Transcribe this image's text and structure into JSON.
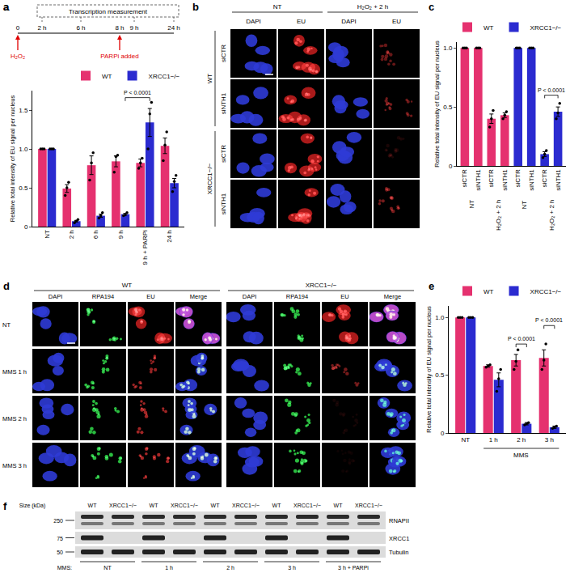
{
  "chart_data": [
    {
      "panel": "a",
      "type": "bar",
      "y_label": "Relative total intensity of EU signal per nucleus",
      "categories": [
        "NT",
        "2 h",
        "6 h",
        "9 h",
        "9 h + PARPi",
        "24 h"
      ],
      "series": [
        {
          "name": "WT",
          "color": "#e5316f",
          "values": [
            1,
            0.49,
            0.79,
            0.84,
            0.82,
            1.04
          ],
          "errors": [
            0,
            0.05,
            0.12,
            0.07,
            0.05,
            0.1
          ],
          "points": [
            [
              1,
              1,
              1
            ],
            [
              0.4,
              0.5,
              0.57
            ],
            [
              0.6,
              0.82,
              0.95
            ],
            [
              0.7,
              0.9,
              0.92
            ],
            [
              0.75,
              0.82,
              0.88
            ],
            [
              0.85,
              1.05,
              1.22
            ]
          ]
        },
        {
          "name": "XRCC1−/−",
          "color": "#2b2bd0",
          "values": [
            1,
            0.07,
            0.14,
            0.16,
            1.34,
            0.56
          ],
          "errors": [
            0,
            0.01,
            0.02,
            0.01,
            0.18,
            0.06
          ],
          "points": [
            [
              1,
              1,
              1
            ],
            [
              0.05,
              0.07,
              0.09
            ],
            [
              0.11,
              0.14,
              0.18
            ],
            [
              0.14,
              0.15,
              0.18
            ],
            [
              1,
              1.45,
              1.6
            ],
            [
              0.45,
              0.58,
              0.66
            ]
          ]
        }
      ],
      "ylim": [
        0,
        1.75
      ],
      "yticks": [
        0,
        0.5,
        {
          "value": 1,
          "label": "1.0"
        },
        1.5
      ],
      "grid": false,
      "legend": "top",
      "annotations": [
        {
          "text": "P < 0.0001",
          "from": [
            3,
            1
          ],
          "to": [
            4,
            1
          ],
          "y": 1.66
        }
      ]
    },
    {
      "panel": "c",
      "type": "bar",
      "y_label": "Relative total intensity of EU signal per nucleus",
      "categories": [
        "siCTR",
        "siNTH1",
        "siCTR",
        "siNTH1",
        "siCTR",
        "siNTH1",
        "siCTR",
        "siNTH1"
      ],
      "group_labels": [
        {
          "label": "NT",
          "span": [
            0,
            1
          ]
        },
        {
          "label": "H₂O₂ + 2 h",
          "span": [
            2,
            3
          ]
        },
        {
          "label": "NT",
          "span": [
            4,
            5
          ]
        },
        {
          "label": "H₂O₂ + 2 h",
          "span": [
            6,
            7
          ]
        }
      ],
      "series": [
        {
          "name": "WT",
          "color": "#e5316f",
          "values": [
            1,
            1,
            0.4,
            0.43,
            null,
            null,
            null,
            null
          ],
          "errors": [
            0,
            0,
            0.04,
            0.02,
            null,
            null,
            null,
            null
          ],
          "points": [
            [
              1,
              1,
              1
            ],
            [
              1,
              1,
              1
            ],
            [
              0.33,
              0.4,
              0.47
            ],
            [
              0.4,
              0.43,
              0.46
            ],
            null,
            null,
            null,
            null
          ]
        },
        {
          "name": "XRCC1−/−",
          "color": "#2b2bd0",
          "values": [
            null,
            null,
            null,
            null,
            1,
            1,
            0.1,
            0.46
          ],
          "errors": [
            null,
            null,
            null,
            null,
            0,
            0,
            0.02,
            0.04
          ],
          "points": [
            null,
            null,
            null,
            null,
            [
              1,
              1,
              1
            ],
            [
              1,
              1,
              1
            ],
            [
              0.07,
              0.1,
              0.13
            ],
            [
              0.4,
              0.45,
              0.53
            ]
          ]
        }
      ],
      "ylim": [
        0,
        1.05
      ],
      "yticks": [
        0,
        0.5,
        {
          "value": 1,
          "label": "1.0"
        }
      ],
      "grid": false,
      "legend": "top",
      "annotations": [
        {
          "text": "P < 0.0001",
          "from": [
            6,
            1
          ],
          "to": [
            7,
            1
          ],
          "y": 0.6
        }
      ]
    },
    {
      "panel": "e",
      "type": "bar",
      "y_label": "Relative total intensity of EU signal per nucleus",
      "categories": [
        "NT",
        "1 h",
        "2 h",
        "3 h"
      ],
      "group_labels": [
        {
          "label": "MMS",
          "span": [
            1,
            3
          ]
        }
      ],
      "series": [
        {
          "name": "WT",
          "color": "#e5316f",
          "values": [
            1,
            0.58,
            0.63,
            0.65
          ],
          "errors": [
            0,
            0.01,
            0.05,
            0.07
          ],
          "points": [
            [
              1,
              1,
              1
            ],
            [
              0.57,
              0.58,
              0.59
            ],
            [
              0.55,
              0.62,
              0.72
            ],
            [
              0.55,
              0.63,
              0.77
            ]
          ]
        },
        {
          "name": "XRCC1−/−",
          "color": "#2b2bd0",
          "values": [
            1,
            0.46,
            0.08,
            0.05
          ],
          "errors": [
            0,
            0.06,
            0.01,
            0.01
          ],
          "points": [
            [
              1,
              1,
              1
            ],
            [
              0.36,
              0.47,
              0.55
            ],
            [
              0.07,
              0.08,
              0.09
            ],
            [
              0.04,
              0.05,
              0.06
            ]
          ]
        }
      ],
      "ylim": [
        0,
        1.1
      ],
      "yticks": [
        0,
        0.5,
        {
          "value": 1,
          "label": "1.0"
        }
      ],
      "grid": false,
      "legend": "top",
      "annotations": [
        {
          "text": "P < 0.0001",
          "from": [
            2,
            0
          ],
          "to": [
            2,
            1
          ],
          "y": 0.77
        },
        {
          "text": "P < 0.0001",
          "from": [
            3,
            0
          ],
          "to": [
            3,
            1
          ],
          "y": 0.93
        }
      ]
    }
  ],
  "panels": [
    {
      "panel": "a",
      "timeline": {
        "box_label": "Transcription measurement",
        "ticks": [
          "0",
          "2 h",
          "6 h",
          "8 h",
          "9 h",
          "24 h"
        ],
        "events": [
          {
            "label": "H₂O₂",
            "at": "0"
          },
          {
            "label": "PARPi added",
            "at": "8 h"
          }
        ]
      }
    },
    {
      "panel": "b",
      "column_groups": [
        {
          "label": "NT",
          "columns": [
            "DAPI",
            "EU"
          ]
        },
        {
          "label": "H₂O₂ + 2 h",
          "columns": [
            "DAPI",
            "EU"
          ]
        }
      ],
      "row_groups": [
        {
          "label": "WT",
          "rows": [
            "siCTR",
            "siNTH1"
          ]
        },
        {
          "label": "XRCC1−/−",
          "rows": [
            "siCTR",
            "siNTH1"
          ]
        }
      ]
    },
    {
      "panel": "d",
      "column_groups": [
        {
          "label": "WT",
          "columns": [
            "DAPI",
            "RPA194",
            "EU",
            "Merge"
          ]
        },
        {
          "label": "XRCC1−/−",
          "columns": [
            "DAPI",
            "RPA194",
            "EU",
            "Merge"
          ]
        }
      ],
      "rows": [
        "NT",
        "MMS 1 h",
        "MMS 2 h",
        "MMS 3 h"
      ]
    },
    {
      "panel": "f",
      "size_label": "Size (kDa)",
      "lanes": [
        "WT",
        "XRCC1−/−",
        "WT",
        "XRCC1−/−",
        "WT",
        "XRCC1−/−",
        "WT",
        "XRCC1−/−",
        "WT",
        "XRCC1−/−"
      ],
      "bands": [
        {
          "name": "RNAPII",
          "size": 250,
          "present": [
            true,
            true,
            true,
            true,
            true,
            true,
            true,
            true,
            true,
            true
          ]
        },
        {
          "name": "XRCC1",
          "size": 75,
          "present": [
            true,
            false,
            true,
            false,
            true,
            false,
            true,
            false,
            true,
            false
          ]
        },
        {
          "name": "Tubulin",
          "size": 50,
          "present": [
            true,
            true,
            true,
            true,
            true,
            true,
            true,
            true,
            true,
            true
          ]
        }
      ],
      "treatment_label": "MMS:",
      "treatments": [
        "NT",
        "1 h",
        "2 h",
        "3 h",
        "3 h + PARPi"
      ]
    }
  ]
}
